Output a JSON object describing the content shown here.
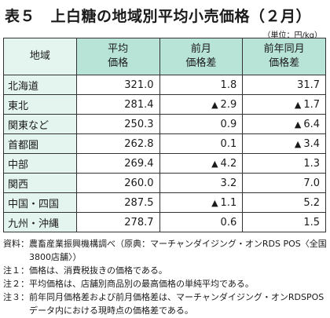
{
  "title": "表５　上白糖の地域別平均小売価格（２月）",
  "unit": "（単位：円/kg）",
  "table": {
    "headers": {
      "region": "地域",
      "avg_price": [
        "平均",
        "価格"
      ],
      "prev_month": [
        "前月",
        "価格差"
      ],
      "prev_year": [
        "前年同月",
        "価格差"
      ]
    },
    "rows": [
      {
        "region": "北海道",
        "price": "321.0",
        "prev_month": "1.8",
        "prev_month_tri": "",
        "prev_year": "31.7",
        "prev_year_tri": ""
      },
      {
        "region": "東北",
        "price": "281.4",
        "prev_month": "2.9",
        "prev_month_tri": "▲",
        "prev_year": "1.7",
        "prev_year_tri": "▲"
      },
      {
        "region": "関東など",
        "price": "250.3",
        "prev_month": "0.9",
        "prev_month_tri": "",
        "prev_year": "6.4",
        "prev_year_tri": "▲"
      },
      {
        "region": "首都圏",
        "price": "262.8",
        "prev_month": "0.1",
        "prev_month_tri": "",
        "prev_year": "3.4",
        "prev_year_tri": "▲"
      },
      {
        "region": "中部",
        "price": "269.4",
        "prev_month": "4.2",
        "prev_month_tri": "▲",
        "prev_year": "1.3",
        "prev_year_tri": ""
      },
      {
        "region": "関西",
        "price": "260.0",
        "prev_month": "3.2",
        "prev_month_tri": "",
        "prev_year": "7.0",
        "prev_year_tri": ""
      },
      {
        "region": "中国・四国",
        "price": "287.5",
        "prev_month": "1.1",
        "prev_month_tri": "▲",
        "prev_year": "5.2",
        "prev_year_tri": ""
      },
      {
        "region": "九州・沖縄",
        "price": "278.7",
        "prev_month": "0.6",
        "prev_month_tri": "",
        "prev_year": "1.5",
        "prev_year_tri": ""
      }
    ]
  },
  "notes": [
    {
      "label": "資料：",
      "text": "農畜産業振興機構調べ（原典：マーチャンダイジング・オンRDS POS〈全国3800店舗〉）"
    },
    {
      "label": "注１：",
      "text": "価格は、消費税抜きの価格である。"
    },
    {
      "label": "注２：",
      "text": "平均価格は、店舗別商品別の最高価格の単純平均である。"
    },
    {
      "label": "注３：",
      "text": "前年同月価格差および前月価格差は、マーチャンダイジング・オンRDSPOSデータ内における現時点の価格差である。"
    }
  ]
}
